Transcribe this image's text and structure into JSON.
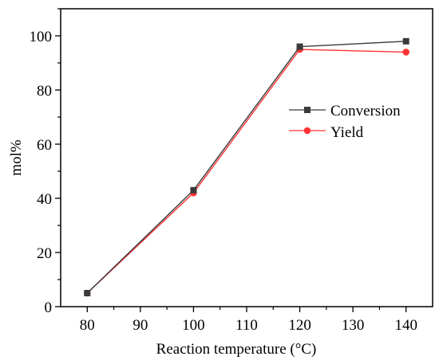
{
  "chart_data": {
    "type": "line",
    "xlabel": "Reaction temperature (°C)",
    "ylabel": "mol%",
    "xlim": [
      75,
      145
    ],
    "ylim": [
      0,
      110
    ],
    "x_ticks": [
      80,
      90,
      100,
      110,
      120,
      130,
      140
    ],
    "y_ticks": [
      0,
      20,
      40,
      60,
      80,
      100
    ],
    "x": [
      80,
      100,
      120,
      140
    ],
    "series": [
      {
        "name": "Conversion",
        "values": [
          5,
          43,
          96,
          98
        ],
        "color": "#3a3a3a",
        "marker": "square"
      },
      {
        "name": "Yield",
        "values": [
          5,
          42,
          95,
          94
        ],
        "color": "#ff3333",
        "marker": "circle"
      }
    ],
    "legend_position": "center-right",
    "grid": false
  }
}
